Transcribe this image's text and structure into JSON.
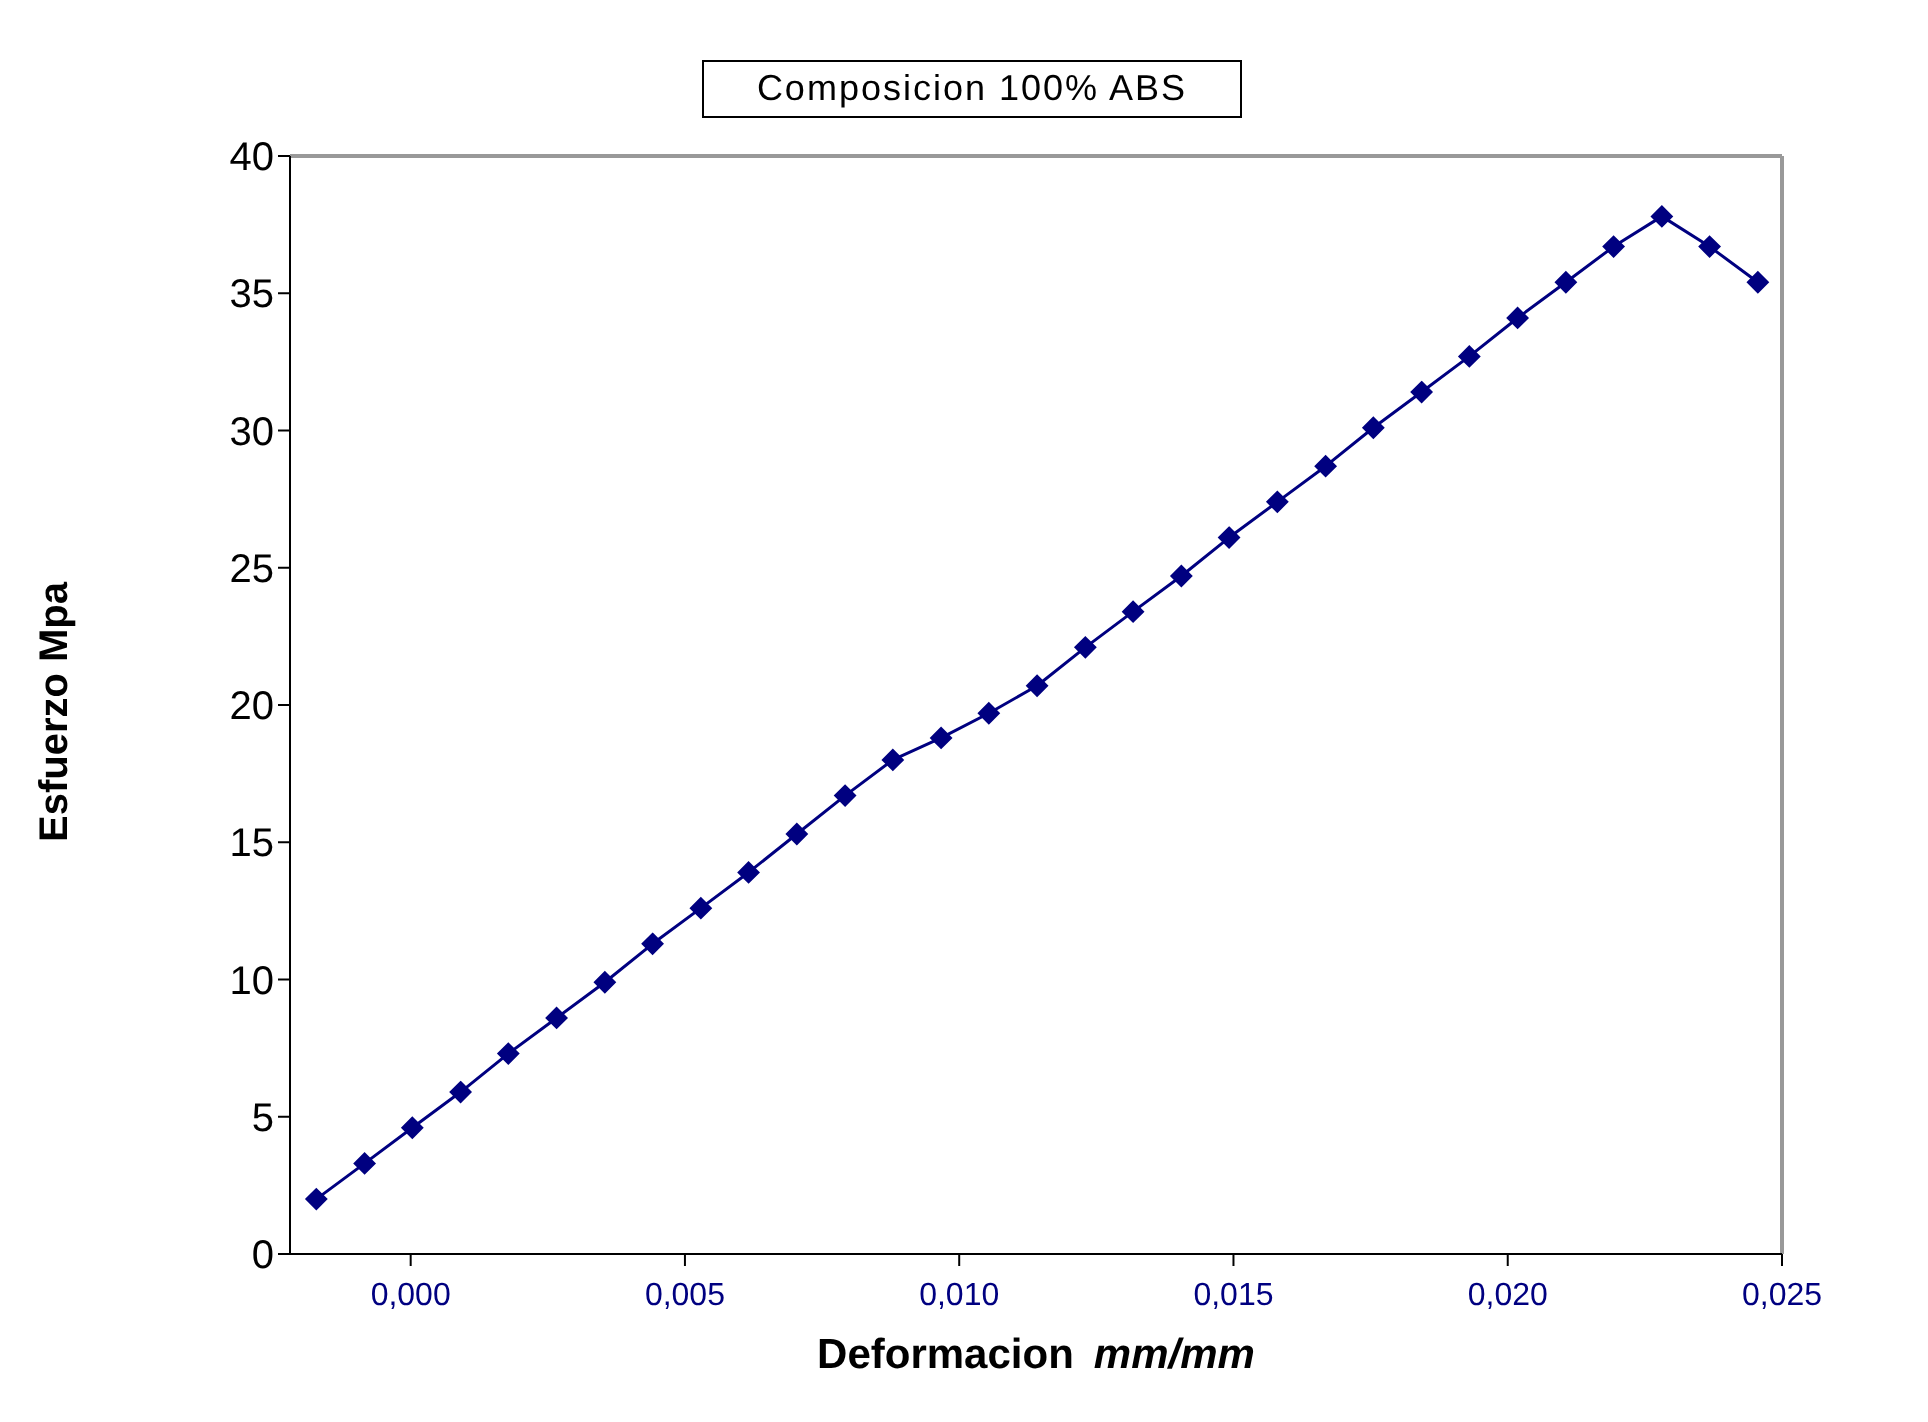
{
  "chart_data": {
    "type": "line",
    "title": "Composicion 100% ABS",
    "xlabel": "Deformacion  mm/mm",
    "ylabel": "Esfuerzo Mpa",
    "x": [
      -0.00172,
      -0.00084,
      3e-05,
      0.00091,
      0.00178,
      0.00266,
      0.00354,
      0.00441,
      0.00529,
      0.00616,
      0.00704,
      0.00792,
      0.00879,
      0.00967,
      0.01054,
      0.01142,
      0.0123,
      0.01317,
      0.01405,
      0.01492,
      0.0158,
      0.01668,
      0.01755,
      0.01843,
      0.0193,
      0.02018,
      0.02106,
      0.02193,
      0.02281,
      0.02368,
      0.02456
    ],
    "series": [
      {
        "color": "#000080",
        "values": [
          2,
          3.3,
          4.6,
          5.9,
          7.3,
          8.6,
          9.9,
          11.3,
          12.6,
          13.9,
          15.3,
          16.7,
          18,
          18.8,
          19.7,
          20.7,
          22.1,
          23.4,
          24.7,
          26.1,
          27.4,
          28.7,
          30.1,
          31.4,
          32.7,
          34.1,
          35.4,
          36.7,
          37.8,
          36.7,
          35.4
        ]
      }
    ],
    "xlim": [
      -0.0022,
      0.025
    ],
    "xticks": [
      {
        "value": 0,
        "label": "0,000"
      },
      {
        "value": 0.005,
        "label": "0,005"
      },
      {
        "value": 0.01,
        "label": "0,010"
      },
      {
        "value": 0.015,
        "label": "0,015"
      },
      {
        "value": 0.02,
        "label": "0,020"
      },
      {
        "value": 0.025,
        "label": "0,025"
      }
    ],
    "ylim": [
      0,
      40
    ],
    "yticks": [
      0,
      5,
      10,
      15,
      20,
      25,
      30,
      35,
      40
    ],
    "grid": false,
    "legend": false,
    "marker": "diamond",
    "line_style": "solid"
  }
}
